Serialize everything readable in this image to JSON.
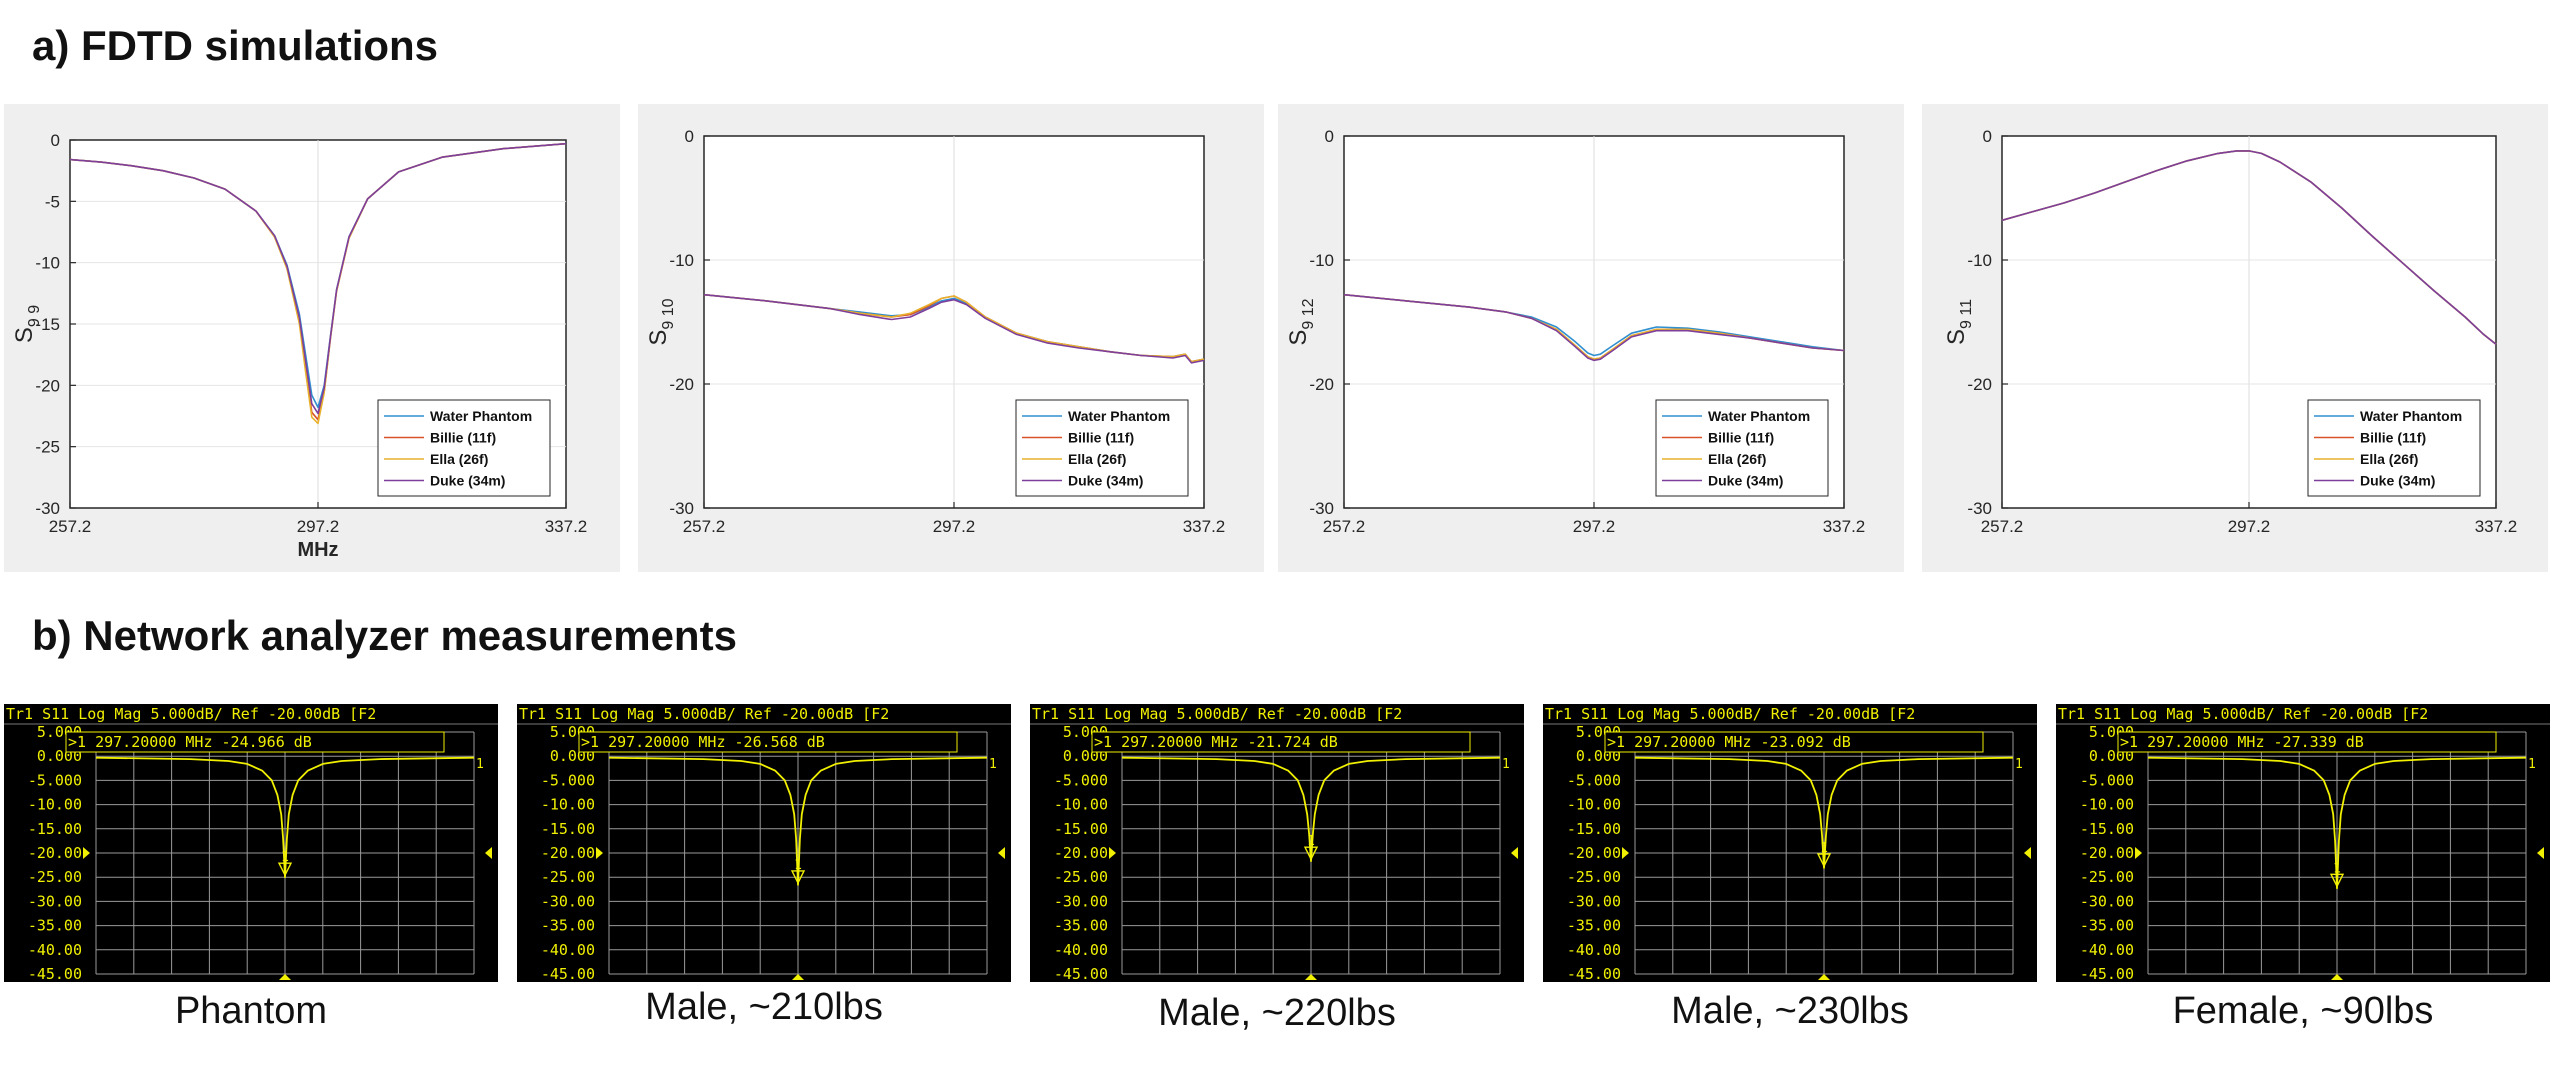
{
  "section_a_title": "a) FDTD simulations",
  "section_b_title": "b) Network analyzer measurements",
  "colors": {
    "water_phantom": "#2f8fcf",
    "billie": "#d9532a",
    "ella": "#e8b12c",
    "duke": "#7e3f9c",
    "trace_yellow": "#f0f000",
    "na_background": "#000000",
    "na_grid": "#9a9a9a"
  },
  "chart_data": [
    {
      "type": "line",
      "panel": "fdtd",
      "ylabel_main": "S",
      "ylabel_sub": "9 9",
      "xlabel": "MHz",
      "xlim": [
        257.2,
        337.2
      ],
      "ylim": [
        -30,
        0
      ],
      "xticks": [
        "257.2",
        "297.2",
        "337.2"
      ],
      "yticks": [
        "0",
        "-5",
        "-10",
        "-15",
        "-20",
        "-25",
        "-30"
      ],
      "grid": "major x,y at center",
      "legend_position": "bottom-right",
      "x": [
        257.2,
        262.2,
        267.2,
        272.2,
        277.2,
        282.2,
        287.2,
        290.2,
        292.2,
        294.2,
        295.2,
        296.2,
        297.2,
        298.2,
        299.2,
        300.2,
        302.2,
        305.2,
        310.2,
        317.2,
        327.2,
        337.2
      ],
      "series": [
        {
          "name": "Water Phantom",
          "values": [
            -1.6,
            -1.8,
            -2.1,
            -2.5,
            -3.1,
            -4.0,
            -5.8,
            -7.8,
            -10.2,
            -14.2,
            -17.5,
            -20.8,
            -21.8,
            -20.0,
            -16.0,
            -12.2,
            -7.9,
            -4.8,
            -2.6,
            -1.4,
            -0.7,
            -0.3
          ]
        },
        {
          "name": "Billie (11f)",
          "values": [
            -1.6,
            -1.8,
            -2.1,
            -2.5,
            -3.1,
            -4.0,
            -5.8,
            -7.9,
            -10.4,
            -14.8,
            -18.5,
            -22.2,
            -22.8,
            -20.5,
            -16.2,
            -12.3,
            -8.0,
            -4.8,
            -2.6,
            -1.4,
            -0.7,
            -0.3
          ]
        },
        {
          "name": "Ella (26f)",
          "values": [
            -1.6,
            -1.8,
            -2.1,
            -2.5,
            -3.1,
            -4.0,
            -5.8,
            -7.9,
            -10.5,
            -15.0,
            -18.9,
            -22.6,
            -23.1,
            -20.6,
            -16.2,
            -12.3,
            -8.0,
            -4.8,
            -2.6,
            -1.4,
            -0.7,
            -0.3
          ]
        },
        {
          "name": "Duke (34m)",
          "values": [
            -1.6,
            -1.8,
            -2.1,
            -2.5,
            -3.1,
            -4.0,
            -5.8,
            -7.8,
            -10.3,
            -14.5,
            -18.0,
            -21.5,
            -22.3,
            -20.2,
            -16.1,
            -12.2,
            -7.9,
            -4.8,
            -2.6,
            -1.4,
            -0.7,
            -0.3
          ]
        }
      ]
    },
    {
      "type": "line",
      "panel": "fdtd",
      "ylabel_main": "S",
      "ylabel_sub": "9 10",
      "xlim": [
        257.2,
        337.2
      ],
      "ylim": [
        -30,
        0
      ],
      "xticks": [
        "257.2",
        "297.2",
        "337.2"
      ],
      "yticks": [
        "0",
        "-10",
        "-20",
        "-30"
      ],
      "grid": "major x,y at center",
      "legend_position": "bottom-right",
      "x": [
        257.2,
        267.2,
        277.2,
        282.2,
        287.2,
        290.2,
        293.2,
        295.2,
        297.2,
        299.2,
        302.2,
        307.2,
        312.2,
        317.2,
        322.2,
        327.2,
        332.2,
        334.2,
        335.2,
        337.2
      ],
      "series": [
        {
          "name": "Water Phantom",
          "values": [
            -12.8,
            -13.3,
            -13.9,
            -14.2,
            -14.5,
            -14.4,
            -13.8,
            -13.3,
            -13.1,
            -13.5,
            -14.6,
            -15.9,
            -16.6,
            -17.0,
            -17.4,
            -17.7,
            -17.8,
            -17.6,
            -18.2,
            -18.0
          ]
        },
        {
          "name": "Billie (11f)",
          "values": [
            -12.8,
            -13.3,
            -13.9,
            -14.3,
            -14.6,
            -14.4,
            -13.7,
            -13.1,
            -12.9,
            -13.4,
            -14.6,
            -15.9,
            -16.6,
            -17.0,
            -17.4,
            -17.7,
            -17.8,
            -17.6,
            -18.2,
            -18.0
          ]
        },
        {
          "name": "Ella (26f)",
          "values": [
            -12.8,
            -13.3,
            -13.9,
            -14.3,
            -14.6,
            -14.3,
            -13.6,
            -13.1,
            -12.9,
            -13.4,
            -14.6,
            -15.9,
            -16.6,
            -17.0,
            -17.4,
            -17.7,
            -17.8,
            -17.6,
            -18.2,
            -18.0
          ]
        },
        {
          "name": "Duke (34m)",
          "values": [
            -12.8,
            -13.3,
            -13.9,
            -14.4,
            -14.8,
            -14.6,
            -13.9,
            -13.4,
            -13.2,
            -13.6,
            -14.7,
            -16.0,
            -16.7,
            -17.1,
            -17.4,
            -17.7,
            -17.9,
            -17.7,
            -18.3,
            -18.1
          ]
        }
      ]
    },
    {
      "type": "line",
      "panel": "fdtd",
      "ylabel_main": "S",
      "ylabel_sub": "9 12",
      "xlim": [
        257.2,
        337.2
      ],
      "ylim": [
        -30,
        0
      ],
      "xticks": [
        "257.2",
        "297.2",
        "337.2"
      ],
      "yticks": [
        "0",
        "-10",
        "-20",
        "-30"
      ],
      "grid": "major x,y at center",
      "legend_position": "bottom-right",
      "x": [
        257.2,
        267.2,
        277.2,
        283.2,
        287.2,
        291.2,
        294.2,
        296.2,
        297.2,
        298.2,
        300.2,
        303.2,
        307.2,
        312.2,
        317.2,
        322.2,
        327.2,
        332.2,
        337.2
      ],
      "series": [
        {
          "name": "Water Phantom",
          "values": [
            -12.8,
            -13.3,
            -13.8,
            -14.2,
            -14.6,
            -15.4,
            -16.6,
            -17.5,
            -17.7,
            -17.6,
            -16.9,
            -15.9,
            -15.4,
            -15.5,
            -15.8,
            -16.2,
            -16.6,
            -17.0,
            -17.3
          ]
        },
        {
          "name": "Billie (11f)",
          "values": [
            -12.8,
            -13.3,
            -13.8,
            -14.2,
            -14.7,
            -15.6,
            -16.9,
            -17.8,
            -18.0,
            -17.9,
            -17.2,
            -16.1,
            -15.6,
            -15.6,
            -15.9,
            -16.3,
            -16.7,
            -17.1,
            -17.3
          ]
        },
        {
          "name": "Ella (26f)",
          "values": [
            -12.8,
            -13.3,
            -13.8,
            -14.2,
            -14.7,
            -15.6,
            -16.9,
            -17.8,
            -18.0,
            -17.9,
            -17.2,
            -16.1,
            -15.6,
            -15.6,
            -15.9,
            -16.3,
            -16.7,
            -17.1,
            -17.3
          ]
        },
        {
          "name": "Duke (34m)",
          "values": [
            -12.8,
            -13.3,
            -13.8,
            -14.2,
            -14.7,
            -15.7,
            -17.0,
            -17.9,
            -18.1,
            -18.0,
            -17.3,
            -16.2,
            -15.7,
            -15.7,
            -16.0,
            -16.3,
            -16.7,
            -17.1,
            -17.3
          ]
        }
      ]
    },
    {
      "type": "line",
      "panel": "fdtd",
      "ylabel_main": "S",
      "ylabel_sub": "9 11",
      "xlim": [
        257.2,
        337.2
      ],
      "ylim": [
        -30,
        0
      ],
      "xticks": [
        "257.2",
        "297.2",
        "337.2"
      ],
      "yticks": [
        "0",
        "-10",
        "-20",
        "-30"
      ],
      "grid": "major x,y at center",
      "legend_position": "bottom-right",
      "x": [
        257.2,
        262.2,
        267.2,
        272.2,
        277.2,
        282.2,
        287.2,
        292.2,
        295.2,
        297.2,
        299.2,
        302.2,
        307.2,
        312.2,
        317.2,
        322.2,
        327.2,
        332.2,
        335.2,
        337.2
      ],
      "series": [
        {
          "name": "Water Phantom",
          "values": [
            -6.8,
            -6.1,
            -5.4,
            -4.6,
            -3.7,
            -2.8,
            -2.0,
            -1.4,
            -1.2,
            -1.2,
            -1.4,
            -2.1,
            -3.7,
            -5.8,
            -8.1,
            -10.3,
            -12.5,
            -14.6,
            -16.0,
            -16.8
          ]
        },
        {
          "name": "Billie (11f)",
          "values": [
            -6.8,
            -6.1,
            -5.4,
            -4.6,
            -3.7,
            -2.8,
            -2.0,
            -1.4,
            -1.2,
            -1.2,
            -1.4,
            -2.1,
            -3.7,
            -5.8,
            -8.1,
            -10.3,
            -12.5,
            -14.6,
            -16.0,
            -16.8
          ]
        },
        {
          "name": "Ella (26f)",
          "values": [
            -6.8,
            -6.1,
            -5.4,
            -4.6,
            -3.7,
            -2.8,
            -2.0,
            -1.4,
            -1.2,
            -1.2,
            -1.4,
            -2.1,
            -3.7,
            -5.8,
            -8.1,
            -10.3,
            -12.5,
            -14.6,
            -16.0,
            -16.8
          ]
        },
        {
          "name": "Duke (34m)",
          "values": [
            -6.8,
            -6.1,
            -5.4,
            -4.6,
            -3.7,
            -2.8,
            -2.0,
            -1.4,
            -1.2,
            -1.2,
            -1.4,
            -2.1,
            -3.7,
            -5.8,
            -8.1,
            -10.3,
            -12.5,
            -14.6,
            -16.0,
            -16.8
          ]
        }
      ]
    },
    {
      "type": "line",
      "panel": "network-analyzer",
      "header": "Tr1  S11  Log Mag 5.000dB/ Ref -20.00dB [F2",
      "marker_readout": ">1   297.20000 MHz -24.966 dB",
      "marker_end_label": "1",
      "marker_label": "1",
      "yticks": [
        "5.000",
        "0.000",
        "-5.000",
        "-10.00",
        "-15.00",
        "-20.00",
        "-25.00",
        "-30.00",
        "-35.00",
        "-40.00",
        "-45.00"
      ],
      "ylim": [
        -45,
        5
      ],
      "ref_level": -20,
      "x": [
        -1,
        -0.5,
        -0.3,
        -0.2,
        -0.12,
        -0.07,
        -0.04,
        -0.02,
        -0.01,
        0,
        0.01,
        0.02,
        0.04,
        0.07,
        0.12,
        0.2,
        0.3,
        0.5,
        1
      ],
      "values": [
        -0.3,
        -0.6,
        -1.0,
        -1.6,
        -3.0,
        -5.0,
        -8.0,
        -12.0,
        -17.0,
        -25.0,
        -17.0,
        -12.0,
        -8.0,
        -5.0,
        -3.0,
        -1.6,
        -1.0,
        -0.6,
        -0.3
      ],
      "caption": "Phantom"
    },
    {
      "type": "line",
      "panel": "network-analyzer",
      "header": "Tr1  S11  Log Mag 5.000dB/ Ref -20.00dB [F2",
      "marker_readout": ">1   297.20000 MHz -26.568 dB",
      "marker_end_label": "1",
      "marker_label": "1",
      "yticks": [
        "5.000",
        "0.000",
        "-5.000",
        "-10.00",
        "-15.00",
        "-20.00",
        "-25.00",
        "-30.00",
        "-35.00",
        "-40.00",
        "-45.00"
      ],
      "ylim": [
        -45,
        5
      ],
      "ref_level": -20,
      "x": [
        -1,
        -0.5,
        -0.3,
        -0.2,
        -0.12,
        -0.07,
        -0.04,
        -0.02,
        -0.01,
        0,
        0.01,
        0.02,
        0.04,
        0.07,
        0.12,
        0.2,
        0.3,
        0.5,
        1
      ],
      "values": [
        -0.3,
        -0.6,
        -1.0,
        -1.6,
        -3.0,
        -5.0,
        -8.0,
        -12.0,
        -17.0,
        -26.6,
        -17.0,
        -12.0,
        -8.0,
        -5.0,
        -3.0,
        -1.6,
        -1.0,
        -0.6,
        -0.3
      ],
      "caption": "Male, ~210lbs"
    },
    {
      "type": "line",
      "panel": "network-analyzer",
      "header": "Tr1  S11  Log Mag 5.000dB/ Ref -20.00dB [F2",
      "marker_readout": ">1   297.20000 MHz -21.724 dB",
      "marker_end_label": "1",
      "marker_label": "1",
      "yticks": [
        "5.000",
        "0.000",
        "-5.000",
        "-10.00",
        "-15.00",
        "-20.00",
        "-25.00",
        "-30.00",
        "-35.00",
        "-40.00",
        "-45.00"
      ],
      "ylim": [
        -45,
        5
      ],
      "ref_level": -20,
      "x": [
        -1,
        -0.5,
        -0.3,
        -0.2,
        -0.12,
        -0.07,
        -0.04,
        -0.02,
        -0.01,
        0,
        0.01,
        0.02,
        0.04,
        0.07,
        0.12,
        0.2,
        0.3,
        0.5,
        1
      ],
      "values": [
        -0.3,
        -0.6,
        -1.0,
        -1.6,
        -3.0,
        -5.0,
        -8.0,
        -12.0,
        -16.0,
        -21.7,
        -16.0,
        -12.0,
        -8.0,
        -5.0,
        -3.0,
        -1.6,
        -1.0,
        -0.6,
        -0.3
      ],
      "caption": "Male, ~220lbs"
    },
    {
      "type": "line",
      "panel": "network-analyzer",
      "header": "Tr1  S11  Log Mag 5.000dB/ Ref -20.00dB [F2",
      "marker_readout": ">1   297.20000 MHz -23.092 dB",
      "marker_end_label": "1",
      "marker_label": "1",
      "yticks": [
        "5.000",
        "0.000",
        "-5.000",
        "-10.00",
        "-15.00",
        "-20.00",
        "-25.00",
        "-30.00",
        "-35.00",
        "-40.00",
        "-45.00"
      ],
      "ylim": [
        -45,
        5
      ],
      "ref_level": -20,
      "x": [
        -1,
        -0.5,
        -0.3,
        -0.2,
        -0.12,
        -0.07,
        -0.04,
        -0.02,
        -0.01,
        0,
        0.01,
        0.02,
        0.04,
        0.07,
        0.12,
        0.2,
        0.3,
        0.5,
        1
      ],
      "values": [
        -0.3,
        -0.6,
        -1.0,
        -1.6,
        -3.0,
        -5.0,
        -8.0,
        -12.0,
        -16.5,
        -23.1,
        -16.5,
        -12.0,
        -8.0,
        -5.0,
        -3.0,
        -1.6,
        -1.0,
        -0.6,
        -0.3
      ],
      "caption": "Male, ~230lbs"
    },
    {
      "type": "line",
      "panel": "network-analyzer",
      "header": "Tr1  S11  Log Mag 5.000dB/ Ref -20.00dB [F2",
      "marker_readout": ">1   297.20000 MHz -27.339 dB",
      "marker_end_label": "1",
      "marker_label": "1",
      "yticks": [
        "5.000",
        "0.000",
        "-5.000",
        "-10.00",
        "-15.00",
        "-20.00",
        "-25.00",
        "-30.00",
        "-35.00",
        "-40.00",
        "-45.00"
      ],
      "ylim": [
        -45,
        5
      ],
      "ref_level": -20,
      "x": [
        -1,
        -0.5,
        -0.3,
        -0.2,
        -0.12,
        -0.07,
        -0.04,
        -0.02,
        -0.01,
        0,
        0.01,
        0.02,
        0.04,
        0.07,
        0.12,
        0.2,
        0.3,
        0.5,
        1
      ],
      "values": [
        -0.3,
        -0.6,
        -1.0,
        -1.6,
        -3.0,
        -5.0,
        -8.0,
        -12.0,
        -17.5,
        -27.3,
        -17.5,
        -12.0,
        -8.0,
        -5.0,
        -3.0,
        -1.6,
        -1.0,
        -0.6,
        -0.3
      ],
      "caption": "Female, ~90lbs"
    }
  ]
}
